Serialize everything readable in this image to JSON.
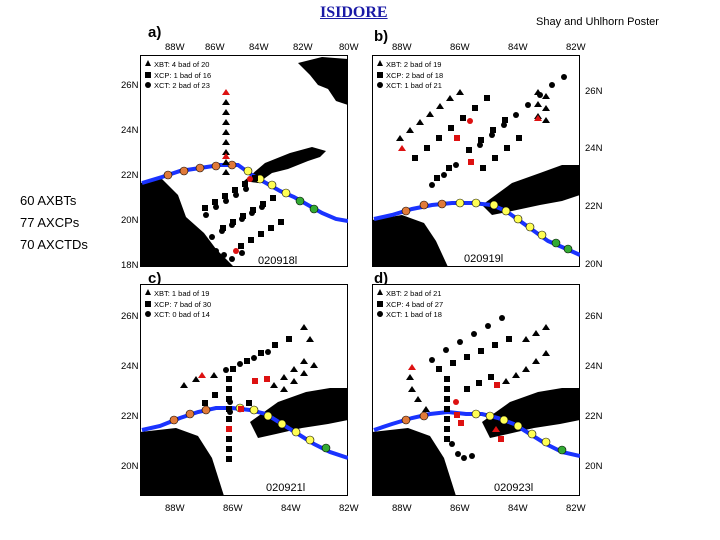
{
  "title": "ISIDORE",
  "attribution": "Shay and Uhlhorn Poster",
  "totals": [
    "60 AXBTs",
    "77 AXCPs",
    "70 AXCTDs"
  ],
  "colors": {
    "xbt": "#000000",
    "xcp": "#000000",
    "xct": "#000000",
    "bad": "#dd1111",
    "track_tropical": "#1a33ff",
    "track_storm": "#ffff55",
    "track_hurricane": "#e07a3a",
    "track_depression": "#33aa33",
    "land": "#000000",
    "sea": "#ffffff"
  },
  "panels": [
    {
      "id": "a",
      "label": "a)",
      "date": "020918l",
      "legend": [
        "XBT: 4 bad of 20",
        "XCP: 1 bad of 16",
        "XCT: 2 bad of 23"
      ],
      "lon_ticks": [
        "88W",
        "86W",
        "84W",
        "82W",
        "80W"
      ],
      "lat_ticks": [
        "26N",
        "24N",
        "22N",
        "20N",
        "18N"
      ]
    },
    {
      "id": "b",
      "label": "b)",
      "date": "020919l",
      "legend": [
        "XBT: 2 bad of 19",
        "XCP: 2 bad of 18",
        "XCT: 1 bad of 21"
      ],
      "lon_ticks": [
        "88W",
        "86W",
        "84W",
        "82W"
      ],
      "lat_ticks": [
        "26N",
        "24N",
        "22N",
        "20N"
      ]
    },
    {
      "id": "c",
      "label": "c)",
      "date": "020921l",
      "legend": [
        "XBT: 1 bad of 19",
        "XCP: 7 bad of 30",
        "XCT: 0 bad of 14"
      ],
      "lon_ticks": [
        "88W",
        "86W",
        "84W",
        "82W"
      ],
      "lat_ticks": [
        "26N",
        "24N",
        "22N",
        "20N"
      ]
    },
    {
      "id": "d",
      "label": "d)",
      "date": "020923l",
      "legend": [
        "XBT: 2 bad of 21",
        "XCP: 4 bad of 27",
        "XCT: 1 bad of 18"
      ],
      "lon_ticks": [
        "88W",
        "86W",
        "84W",
        "82W"
      ],
      "lat_ticks": [
        "26N",
        "24N",
        "22N",
        "20N"
      ]
    }
  ]
}
